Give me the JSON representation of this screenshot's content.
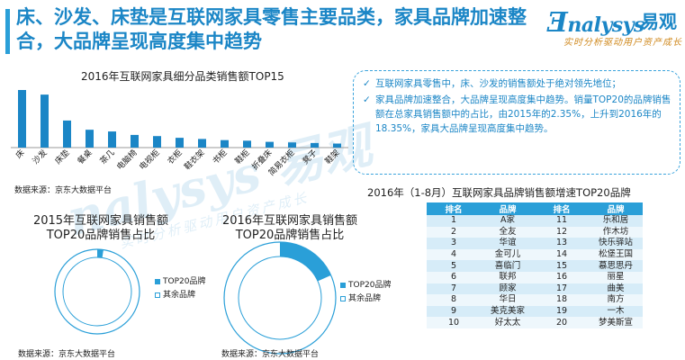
{
  "header": {
    "headline": "床、沙发、床垫是互联网家具零售主要品类，家具品牌加速整合，大品牌呈现高度集中趋势",
    "logo_text": "nalysys",
    "logo_cn": "易观",
    "logo_tagline": "实时分析驱动用户资产成长"
  },
  "watermark": {
    "text": "nalysys 易观",
    "tagline": "实时分析驱动用户资产成长"
  },
  "bar_section": {
    "source": "数据来源：京东大数据平台"
  },
  "bullets": [
    "互联网家具零售中，床、沙发的销售额处于绝对领先地位；",
    "家具品牌加速整合，大品牌呈现高度集中趋势。销量TOP20的品牌销售额在总家具销售额中的占比，由2015年的2.35%，上升到2016年的18.35%，家具大品牌呈现高度集中趋势。"
  ],
  "brand_table": {
    "title": "2016年（1-8月）互联网家具品牌销售额增速TOP20品牌",
    "headers": [
      "排名",
      "品牌",
      "排名",
      "品牌"
    ],
    "rows": [
      [
        "1",
        "A家",
        "11",
        "乐和居"
      ],
      [
        "2",
        "全友",
        "12",
        "作木坊"
      ],
      [
        "3",
        "华谊",
        "13",
        "快乐驿站"
      ],
      [
        "4",
        "金可儿",
        "14",
        "松堡王国"
      ],
      [
        "5",
        "喜临门",
        "15",
        "慕思思丹"
      ],
      [
        "6",
        "联邦",
        "16",
        "丽星"
      ],
      [
        "7",
        "顾家",
        "17",
        "曲美"
      ],
      [
        "8",
        "华日",
        "18",
        "南方"
      ],
      [
        "9",
        "美克美家",
        "19",
        "一木"
      ],
      [
        "10",
        "好太太",
        "20",
        "梦美斯宣"
      ]
    ]
  },
  "pie_sources": [
    "数据来源：京东大数据平台",
    "数据来源：京东大数据平台"
  ],
  "colors": {
    "accent": "#1b86c6",
    "bar": "#1b86c6",
    "pie": "#2a9fd8"
  },
  "chart_data": [
    {
      "type": "bar",
      "title": "2016年互联网家具细分品类销售额TOP15",
      "categories": [
        "床",
        "沙发",
        "床垫",
        "餐桌",
        "茶几",
        "电脑椅",
        "电视柜",
        "衣柜",
        "鞋衣架",
        "书柜",
        "鞋柜",
        "折叠床",
        "简易衣柜",
        "凳子",
        "鞋架"
      ],
      "values": [
        100,
        92,
        47,
        31,
        28,
        22,
        20,
        17,
        15,
        13,
        12,
        10,
        9,
        8,
        7
      ],
      "xlabel": "",
      "ylabel": "",
      "ylim": [
        0,
        100
      ],
      "grid": false
    },
    {
      "type": "pie",
      "title": "2015年互联网家具销售额TOP20品牌销售占比",
      "labels": [
        "TOP20品牌",
        "其余品牌"
      ],
      "values": [
        2.35,
        97.65
      ],
      "legend": "right"
    },
    {
      "type": "pie",
      "title": "2016年互联网家具销售额TOP20品牌销售占比",
      "labels": [
        "TOP20品牌",
        "其余品牌"
      ],
      "values": [
        18.35,
        81.65
      ],
      "legend": "right"
    }
  ]
}
